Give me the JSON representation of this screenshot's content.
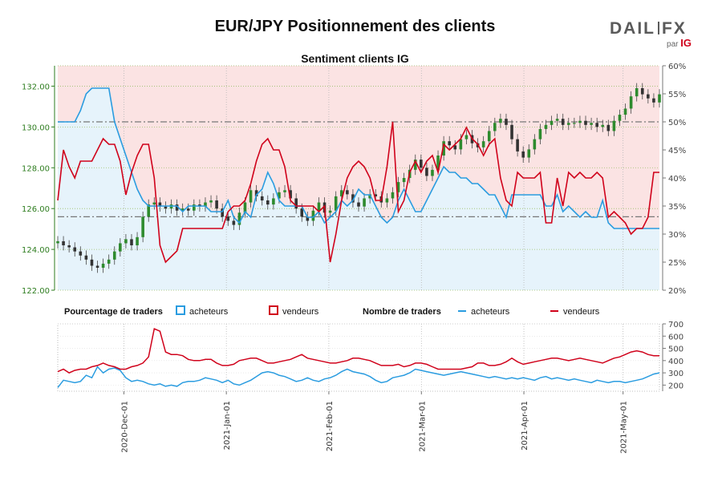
{
  "header": {
    "title": "EUR/JPY Positionnement des clients",
    "subtitle": "Sentiment clients IG",
    "logo_left": "DAIL",
    "logo_right": "FX",
    "logo_by": "par",
    "logo_ig": "IG"
  },
  "legend": {
    "pct_title": "Pourcentage de traders",
    "pct_buyers": "acheteurs",
    "pct_sellers": "vendeurs",
    "count_title": "Nombre de traders",
    "count_buyers": "acheteurs",
    "count_sellers": "vendeurs"
  },
  "colors": {
    "buyers": "#2a9ce0",
    "sellers": "#d0021b",
    "buyers_fill": "#e6f3fb",
    "sellers_fill": "#fbe3e3",
    "candle_up": "#2e8b2e",
    "candle_down": "#333333",
    "price_axis": "#2e7d1f"
  },
  "chart_data": [
    {
      "type": "line",
      "name": "price-and-percentage",
      "x_ticks": [
        "2020-Dec-01",
        "2021-Jan-01",
        "2021-Feb-01",
        "2021-Mar-01",
        "2021-Apr-01",
        "2021-May-01"
      ],
      "x_range": [
        "2020-Nov-11",
        "2021-May-12"
      ],
      "left_axis": {
        "ylim": [
          122,
          133.0
        ],
        "ticks": [
          "122.00",
          "124.00",
          "126.00",
          "128.00",
          "130.00",
          "132.00"
        ]
      },
      "right_axis": {
        "ylim": [
          20,
          60
        ],
        "ticks": [
          "20%",
          "25%",
          "30%",
          "35%",
          "40%",
          "45%",
          "50%",
          "55%",
          "60%"
        ]
      },
      "reference_lines": [
        130.25,
        125.6
      ],
      "price_closes": [
        124.4,
        124.2,
        124.1,
        123.9,
        123.7,
        123.5,
        123.2,
        123.1,
        123.3,
        123.5,
        123.9,
        124.3,
        124.5,
        124.2,
        124.6,
        125.6,
        126.2,
        126.3,
        126.1,
        126.0,
        126.2,
        125.9,
        126.0,
        125.9,
        126.2,
        126.1,
        126.3,
        126.4,
        126.0,
        125.6,
        125.4,
        125.2,
        125.8,
        126.3,
        126.9,
        126.6,
        126.4,
        126.2,
        126.5,
        126.8,
        126.9,
        126.5,
        126.0,
        125.6,
        125.4,
        125.9,
        126.3,
        125.8,
        125.9,
        126.6,
        126.9,
        126.7,
        126.3,
        126.1,
        126.5,
        126.7,
        126.6,
        126.3,
        126.5,
        126.8,
        127.3,
        127.5,
        127.9,
        128.4,
        128.0,
        127.6,
        127.9,
        128.6,
        129.3,
        129.1,
        128.9,
        129.4,
        129.6,
        129.2,
        129.0,
        129.3,
        129.8,
        130.2,
        130.4,
        130.1,
        129.4,
        128.8,
        128.5,
        128.9,
        129.4,
        129.9,
        130.1,
        130.3,
        130.4,
        130.1,
        130.2,
        130.2,
        130.3,
        130.1,
        130.2,
        130.0,
        130.1,
        129.8,
        130.3,
        130.6,
        130.9,
        131.5,
        131.9,
        131.6,
        131.4,
        131.2,
        131.6
      ],
      "series": [
        {
          "name": "acheteurs",
          "values": [
            50,
            50,
            50,
            50,
            52,
            55,
            56,
            56,
            56,
            56,
            50,
            47,
            44,
            41,
            38,
            36,
            35,
            35,
            35,
            35,
            35,
            35,
            34,
            35,
            35,
            35,
            35,
            34,
            34,
            34,
            36,
            33,
            32,
            34,
            33,
            37,
            38,
            41,
            39,
            36,
            35,
            35,
            35,
            35,
            33,
            33,
            34,
            32,
            33,
            34,
            36,
            35,
            36,
            38,
            37,
            37,
            35,
            33,
            32,
            33,
            36,
            38,
            36,
            34,
            34,
            36,
            38,
            40,
            42,
            41,
            41,
            40,
            40,
            39,
            39,
            38,
            37,
            37,
            35,
            33,
            37,
            37,
            37,
            37,
            37,
            37,
            35,
            35,
            37,
            34,
            35,
            34,
            33,
            34,
            33,
            33,
            36,
            32,
            31,
            31,
            31,
            31,
            31,
            31,
            31,
            31,
            31
          ]
        },
        {
          "name": "vendeurs",
          "values": [
            36,
            45,
            42,
            40,
            43,
            43,
            43,
            45,
            47,
            46,
            46,
            43,
            37,
            41,
            44,
            46,
            46,
            40,
            28,
            25,
            26,
            27,
            31,
            31,
            31,
            31,
            31,
            31,
            31,
            31,
            34,
            35,
            35,
            36,
            39,
            43,
            46,
            47,
            45,
            45,
            42,
            36,
            35,
            35,
            35,
            35,
            34,
            35,
            25,
            30,
            36,
            40,
            42,
            43,
            42,
            40,
            36,
            36,
            42,
            50,
            34,
            36,
            41,
            43,
            41,
            43,
            44,
            41,
            46,
            45,
            46,
            47,
            49,
            47,
            46,
            44,
            46,
            47,
            40,
            36,
            35,
            41,
            40,
            40,
            40,
            41,
            32,
            32,
            40,
            35,
            41,
            40,
            41,
            40,
            40,
            41,
            40,
            33,
            34,
            33,
            32,
            30,
            31,
            31,
            33,
            41,
            41
          ]
        }
      ]
    },
    {
      "type": "line",
      "name": "trader-counts",
      "ylim": [
        150,
        700
      ],
      "y_ticks": [
        "200",
        "300",
        "400",
        "500",
        "600",
        "700"
      ],
      "series": [
        {
          "name": "acheteurs",
          "values": [
            180,
            240,
            230,
            220,
            230,
            280,
            260,
            350,
            300,
            330,
            340,
            320,
            260,
            230,
            240,
            230,
            210,
            200,
            210,
            190,
            200,
            190,
            220,
            230,
            230,
            240,
            260,
            250,
            240,
            220,
            240,
            210,
            200,
            220,
            240,
            270,
            300,
            310,
            300,
            280,
            270,
            250,
            230,
            240,
            260,
            240,
            230,
            250,
            260,
            280,
            310,
            330,
            310,
            300,
            290,
            270,
            240,
            220,
            230,
            260,
            270,
            280,
            300,
            330,
            320,
            310,
            300,
            290,
            280,
            290,
            300,
            310,
            300,
            290,
            280,
            270,
            260,
            270,
            260,
            250,
            260,
            250,
            260,
            250,
            240,
            260,
            270,
            250,
            260,
            250,
            240,
            250,
            240,
            230,
            220,
            240,
            230,
            220,
            230,
            230,
            220,
            230,
            240,
            250,
            270,
            290,
            300
          ]
        },
        {
          "name": "vendeurs",
          "values": [
            310,
            330,
            300,
            320,
            330,
            330,
            350,
            360,
            380,
            360,
            350,
            330,
            330,
            350,
            360,
            380,
            430,
            660,
            640,
            470,
            450,
            450,
            440,
            410,
            400,
            400,
            410,
            410,
            380,
            360,
            360,
            370,
            400,
            410,
            420,
            420,
            400,
            380,
            380,
            390,
            400,
            410,
            430,
            450,
            420,
            410,
            400,
            390,
            380,
            380,
            390,
            400,
            420,
            420,
            410,
            400,
            380,
            360,
            360,
            360,
            370,
            350,
            360,
            380,
            380,
            370,
            350,
            330,
            330,
            330,
            330,
            330,
            340,
            350,
            380,
            380,
            360,
            360,
            370,
            390,
            420,
            390,
            370,
            380,
            390,
            400,
            410,
            420,
            420,
            410,
            400,
            410,
            420,
            410,
            400,
            390,
            380,
            400,
            420,
            430,
            450,
            470,
            480,
            470,
            450,
            440,
            440
          ]
        }
      ]
    }
  ]
}
